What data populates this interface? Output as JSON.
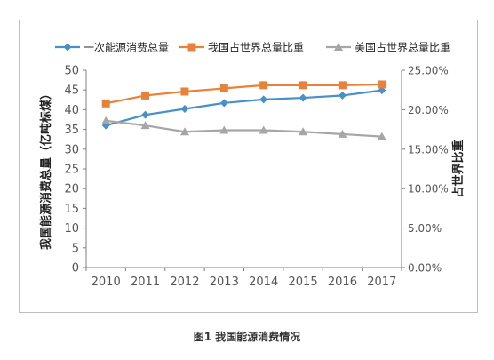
{
  "chart_data": {
    "type": "line",
    "title": "",
    "categories": [
      "2010",
      "2011",
      "2012",
      "2013",
      "2014",
      "2015",
      "2016",
      "2017"
    ],
    "ylabel": "我国能源消费总量（亿吨标煤）",
    "ylabel_right": "占世界比重",
    "ylim": [
      0,
      50
    ],
    "yticks": [
      "0",
      "5",
      "10",
      "15",
      "20",
      "25",
      "30",
      "35",
      "40",
      "45",
      "50"
    ],
    "ylim_right": [
      0,
      0.25
    ],
    "yticks_right": [
      "0.00%",
      "5.00%",
      "10.00%",
      "15.00%",
      "20.00%",
      "25.00%"
    ],
    "legend_position": "top",
    "grid": false,
    "series": [
      {
        "name": "一次能源消费总量",
        "axis": "left",
        "color": "#4a90c8",
        "marker": "diamond",
        "values": [
          36.0,
          38.7,
          40.2,
          41.7,
          42.6,
          43.0,
          43.6,
          44.9
        ]
      },
      {
        "name": "我国占世界总量比重",
        "axis": "right",
        "color": "#e8823a",
        "marker": "square",
        "values": [
          0.208,
          0.218,
          0.223,
          0.227,
          0.231,
          0.231,
          0.231,
          0.232
        ]
      },
      {
        "name": "美国占世界总量比重",
        "axis": "right",
        "color": "#a6a6a6",
        "marker": "triangle",
        "values": [
          0.186,
          0.18,
          0.172,
          0.174,
          0.174,
          0.172,
          0.169,
          0.166
        ]
      }
    ]
  },
  "caption": "图1  我国能源消费情况"
}
